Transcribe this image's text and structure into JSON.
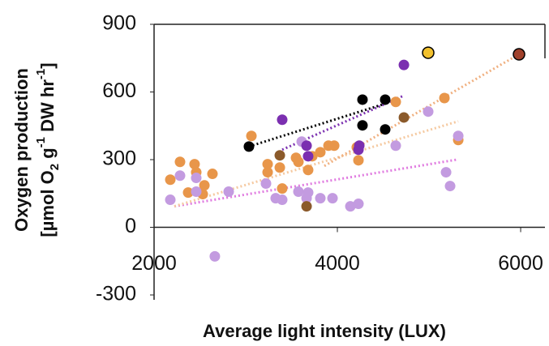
{
  "chart_data": {
    "type": "scatter",
    "xlabel": "Average light intensity (LUX)",
    "ylabel_line1": "Oxygen production",
    "ylabel_line2": [
      "[µmol O",
      "2",
      " g",
      "-1",
      " DW hr",
      "-1",
      "]"
    ],
    "xlim": [
      2000,
      6265
    ],
    "ylim": [
      -300,
      900
    ],
    "xticks": [
      2000,
      4000,
      6000
    ],
    "yticks": [
      -300,
      0,
      300,
      600,
      900
    ],
    "series": [
      {
        "color": "#e8964a",
        "x": [
          2177,
          2283,
          2372,
          2442,
          2460,
          2531,
          2549,
          2637,
          3062,
          3239,
          3239,
          3372,
          3398,
          3549,
          3575,
          3681,
          3726,
          3814,
          3903,
          3965,
          4212,
          4230,
          4637,
          5168,
          5319
        ],
        "values": [
          211,
          290,
          154,
          280,
          244,
          147,
          186,
          237,
          405,
          280,
          244,
          265,
          172,
          308,
          290,
          254,
          315,
          333,
          362,
          362,
          355,
          297,
          556,
          573,
          387
        ]
      },
      {
        "color": "#c39be0",
        "x": [
          2177,
          2283,
          2460,
          2460,
          2814,
          3221,
          3327,
          3398,
          3575,
          3611,
          3664,
          3681,
          3814,
          3947,
          4142,
          4230,
          4637,
          4991,
          5186,
          5230,
          5319,
          2663
        ],
        "values": [
          122,
          229,
          219,
          158,
          158,
          194,
          129,
          122,
          158,
          380,
          129,
          154,
          129,
          129,
          93,
          104,
          362,
          513,
          244,
          183,
          405,
          -129
        ]
      },
      {
        "color": "#7b2fb0",
        "x": [
          3398,
          3664,
          3681,
          4230,
          4239,
          4726
        ],
        "values": [
          477,
          362,
          315,
          344,
          362,
          720
        ]
      },
      {
        "color": "#000000",
        "x": [
          3035,
          4274,
          4274,
          4522,
          4522
        ],
        "values": [
          358,
          566,
          452,
          566,
          434
        ]
      },
      {
        "color": "#8b5a2b",
        "x": [
          3372,
          3664,
          4726
        ],
        "values": [
          319,
          93,
          487
        ]
      },
      {
        "color": "#f2c12e",
        "outline": "#000000",
        "x": [
          4991
        ],
        "values": [
          774
        ]
      },
      {
        "color": "#a0402a",
        "outline": "#000000",
        "x": [
          5982
        ],
        "values": [
          767
        ]
      }
    ],
    "trendlines": [
      {
        "color": "#e07be0",
        "x": [
          2221,
          5319
        ],
        "values": [
          93,
          301
        ]
      },
      {
        "color": "#f5c9a0",
        "x": [
          2221,
          5319
        ],
        "values": [
          93,
          470
        ]
      },
      {
        "color": "#f0b080",
        "x": [
          3858,
          5982
        ],
        "values": [
          272,
          767
        ]
      },
      {
        "color": "#000000",
        "x": [
          3035,
          4522
        ],
        "values": [
          358,
          548
        ]
      },
      {
        "color": "#7b2fb0",
        "x": [
          3398,
          4726
        ],
        "values": [
          344,
          584
        ]
      }
    ]
  }
}
